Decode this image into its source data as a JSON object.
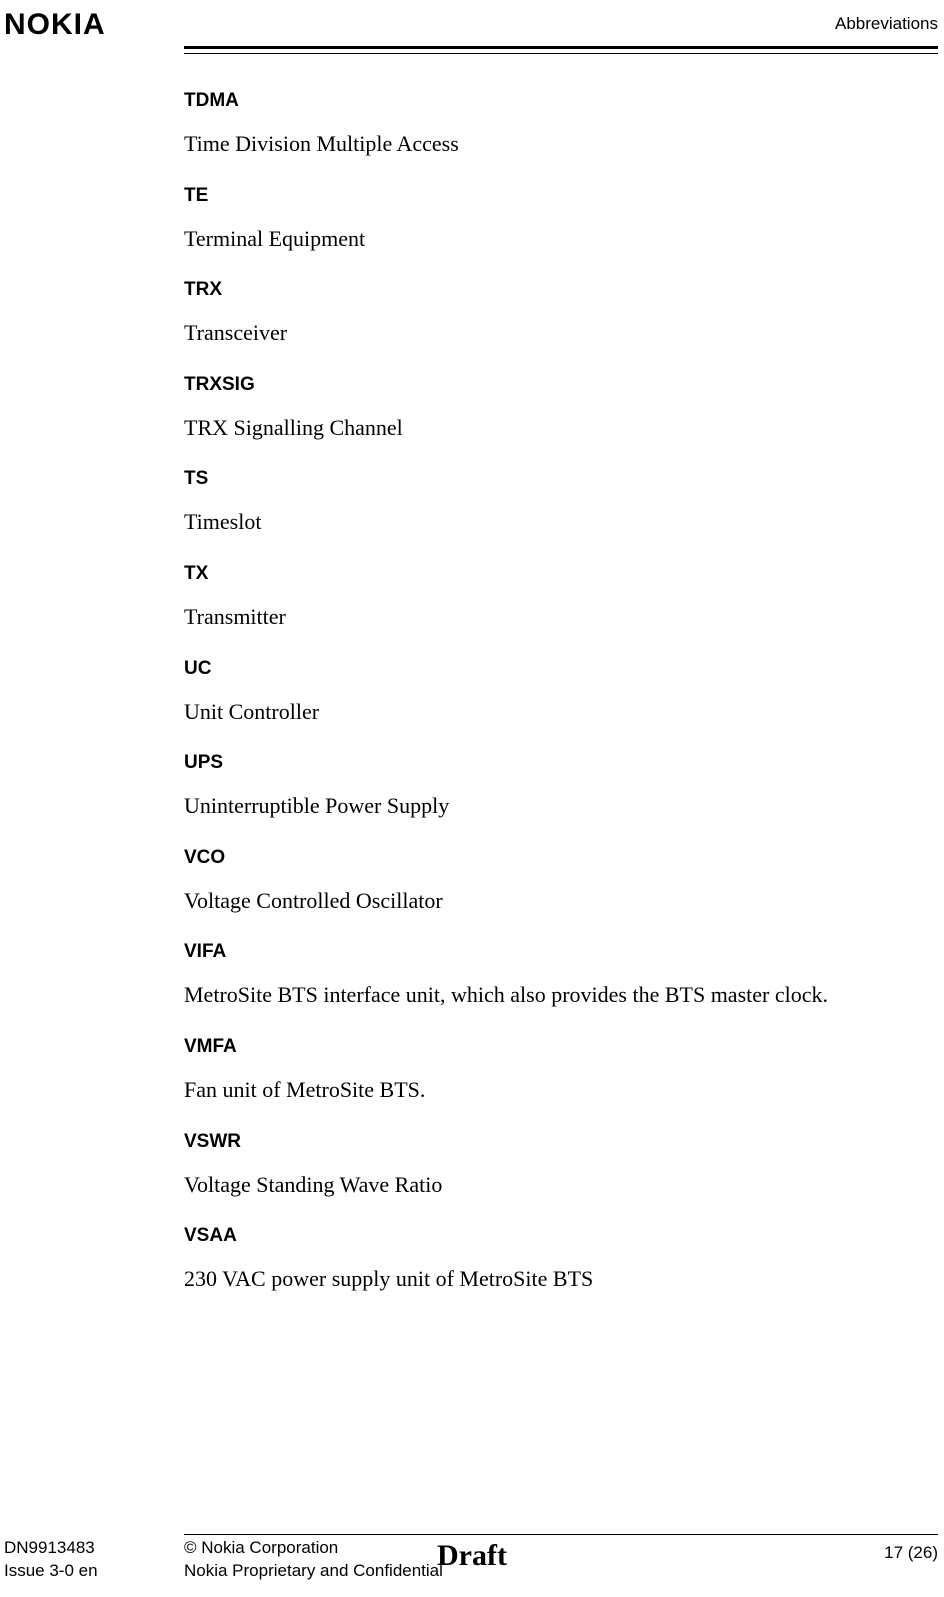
{
  "header": {
    "logo": "NOKIA",
    "section": "Abbreviations"
  },
  "entries": [
    {
      "term": "TDMA",
      "def": "Time Division Multiple Access"
    },
    {
      "term": "TE",
      "def": "Terminal Equipment"
    },
    {
      "term": "TRX",
      "def": "Transceiver"
    },
    {
      "term": "TRXSIG",
      "def": "TRX Signalling Channel"
    },
    {
      "term": "TS",
      "def": "Timeslot"
    },
    {
      "term": "TX",
      "def": "Transmitter"
    },
    {
      "term": "UC",
      "def": "Unit Controller"
    },
    {
      "term": "UPS",
      "def": "Uninterruptible Power Supply"
    },
    {
      "term": "VCO",
      "def": "Voltage Controlled Oscillator"
    },
    {
      "term": "VIFA",
      "def": "MetroSite BTS interface unit, which also provides the BTS master clock."
    },
    {
      "term": "VMFA",
      "def": "Fan unit of MetroSite BTS."
    },
    {
      "term": "VSWR",
      "def": "Voltage Standing Wave Ratio"
    },
    {
      "term": "VSAA",
      "def": "230 VAC power supply unit of MetroSite BTS"
    }
  ],
  "footer": {
    "doc_id": "DN9913483",
    "issue": "Issue 3-0 en",
    "copyright": "© Nokia Corporation",
    "confidential": "Nokia Proprietary and Confidential",
    "status": "Draft",
    "page": "17 (26)"
  }
}
